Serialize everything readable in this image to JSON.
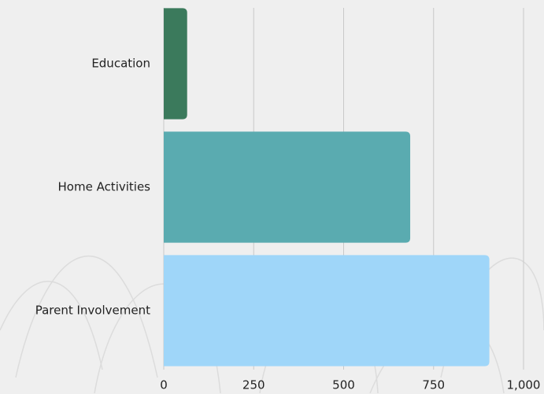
{
  "chart_data": {
    "type": "bar",
    "orientation": "horizontal",
    "categories": [
      "Education",
      "Home Activities",
      "Parent Involvement"
    ],
    "values": [
      65,
      685,
      905
    ],
    "colors": [
      "#3b7a5c",
      "#5aabb0",
      "#9fd6f9"
    ],
    "xlim": [
      0,
      1000
    ],
    "xticks": [
      0,
      250,
      500,
      750,
      {
        "value": 1000,
        "label": "1,000"
      }
    ],
    "grid": true
  }
}
